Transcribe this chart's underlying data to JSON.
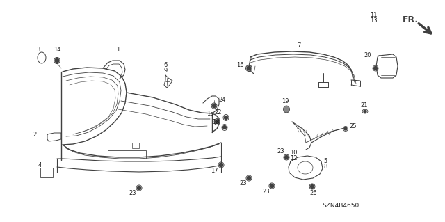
{
  "bg_color": "#ffffff",
  "line_color": "#404040",
  "text_color": "#222222",
  "part_code": "SZN4B4650",
  "figsize": [
    6.4,
    3.19
  ],
  "dpi": 100
}
